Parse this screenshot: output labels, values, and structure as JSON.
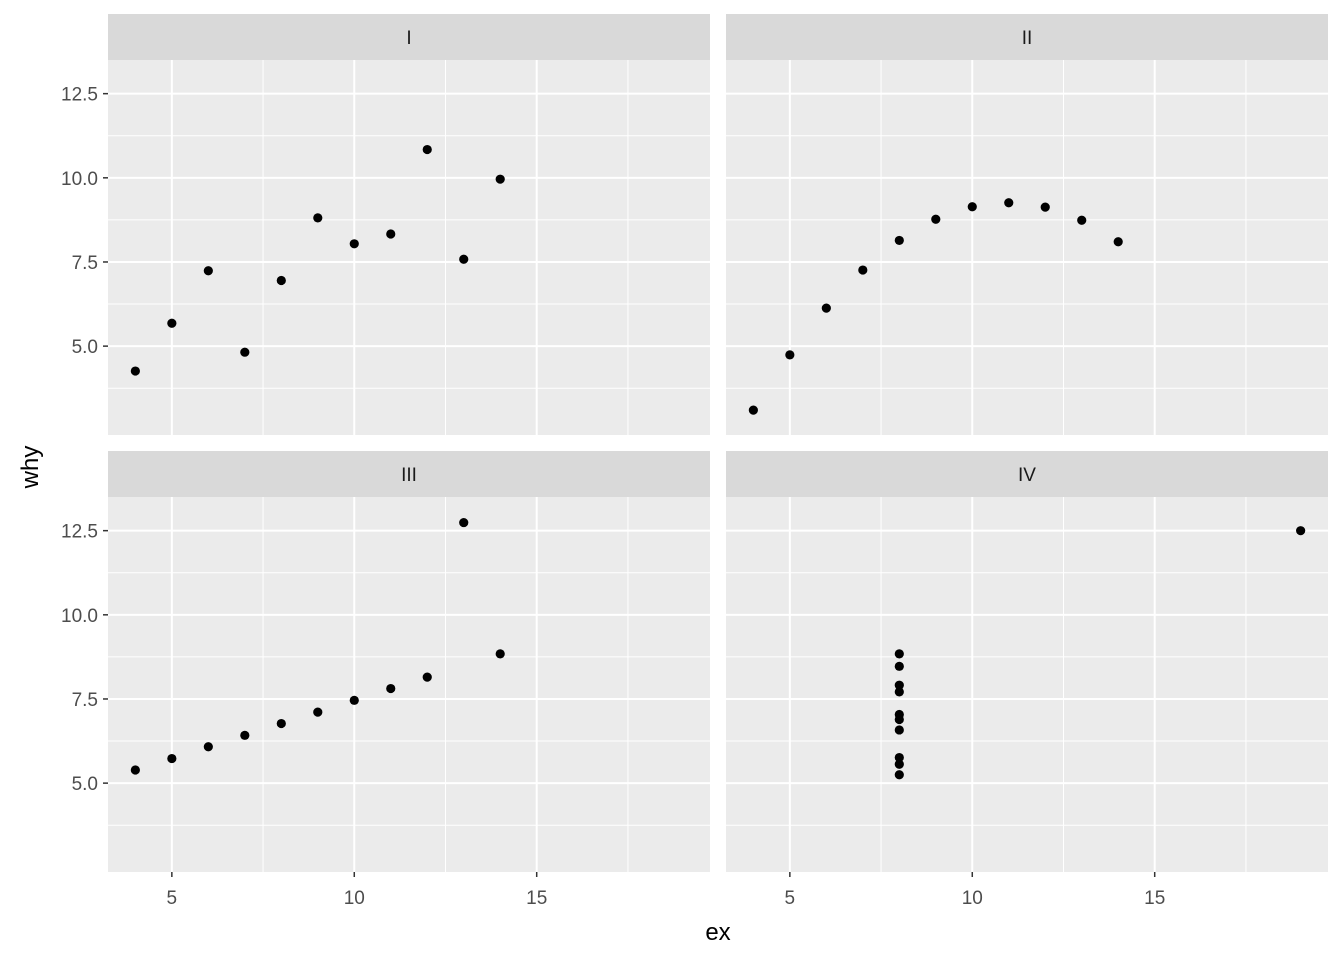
{
  "chart_data": {
    "type": "scatter",
    "xlabel": "ex",
    "ylabel": "why",
    "xlim": [
      3.25,
      19.75
    ],
    "ylim": [
      2.36,
      13.5
    ],
    "x_ticks": [
      5,
      10,
      15
    ],
    "x_tick_labels": [
      "5",
      "10",
      "15"
    ],
    "y_ticks": [
      5.0,
      7.5,
      10.0,
      12.5
    ],
    "y_tick_labels": [
      "5.0",
      "7.5",
      "10.0",
      "12.5"
    ],
    "grid": true,
    "facets": [
      {
        "label": "I",
        "x": [
          10,
          8,
          13,
          9,
          11,
          14,
          6,
          4,
          12,
          7,
          5
        ],
        "y": [
          8.04,
          6.95,
          7.58,
          8.81,
          8.33,
          9.96,
          7.24,
          4.26,
          10.84,
          4.82,
          5.68
        ]
      },
      {
        "label": "II",
        "x": [
          10,
          8,
          13,
          9,
          11,
          14,
          6,
          4,
          12,
          7,
          5
        ],
        "y": [
          9.14,
          8.14,
          8.74,
          8.77,
          9.26,
          8.1,
          6.13,
          3.1,
          9.13,
          7.26,
          4.74
        ]
      },
      {
        "label": "III",
        "x": [
          10,
          8,
          13,
          9,
          11,
          14,
          6,
          4,
          12,
          7,
          5
        ],
        "y": [
          7.46,
          6.77,
          12.74,
          7.11,
          7.81,
          8.84,
          6.08,
          5.39,
          8.15,
          6.42,
          5.73
        ]
      },
      {
        "label": "IV",
        "x": [
          8,
          8,
          8,
          8,
          8,
          8,
          8,
          19,
          8,
          8,
          8
        ],
        "y": [
          6.58,
          5.76,
          7.71,
          8.84,
          8.47,
          7.04,
          5.25,
          12.5,
          5.56,
          7.91,
          6.89
        ]
      }
    ]
  },
  "colors": {
    "panel_background": "#ebebeb",
    "strip_background": "#d9d9d9",
    "grid_major": "#ffffff",
    "point": "#000000"
  }
}
